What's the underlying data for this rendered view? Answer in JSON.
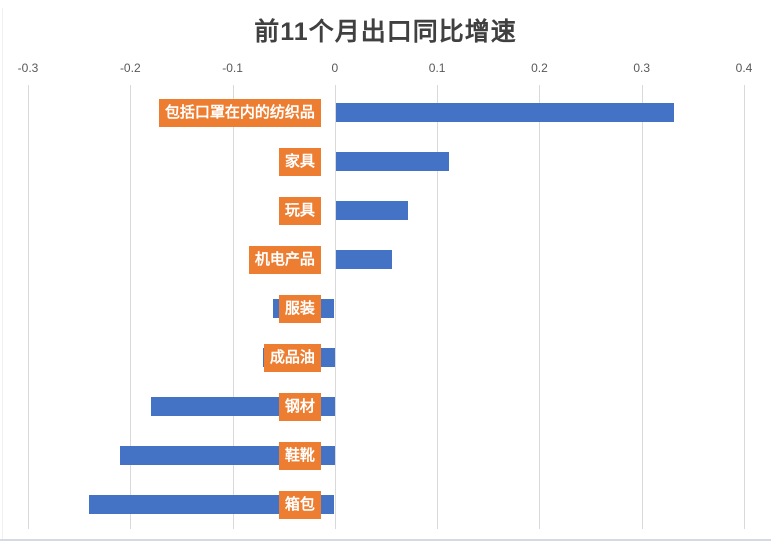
{
  "title": "前11个月出口同比增速",
  "chart_data": {
    "type": "bar",
    "orientation": "horizontal",
    "title": "前11个月出口同比增速",
    "xlabel": "",
    "ylabel": "",
    "categories": [
      "包括口罩在内的纺织品",
      "家具",
      "玩具",
      "机电产品",
      "服装",
      "成品油",
      "钢材",
      "鞋靴",
      "箱包"
    ],
    "values": [
      0.33,
      0.11,
      0.07,
      0.055,
      -0.06,
      -0.07,
      -0.18,
      -0.21,
      -0.24
    ],
    "xlim": [
      -0.3,
      0.4
    ],
    "xticks": [
      -0.3,
      -0.2,
      -0.1,
      0,
      0.1,
      0.2,
      0.3,
      0.4
    ],
    "xtick_labels": [
      "-0.3",
      "-0.2",
      "-0.1",
      "0",
      "0.1",
      "0.2",
      "0.3",
      "0.4"
    ],
    "axis_position": "top",
    "grid": true,
    "legend": false,
    "colors": {
      "bar": "#4472c4",
      "category_label_bg": "#ed7d31",
      "category_label_text": "#ffffff",
      "gridline": "#d9d9d9",
      "tick_label": "#595959",
      "title": "#404040",
      "chart_border": "#d4dae3"
    }
  }
}
